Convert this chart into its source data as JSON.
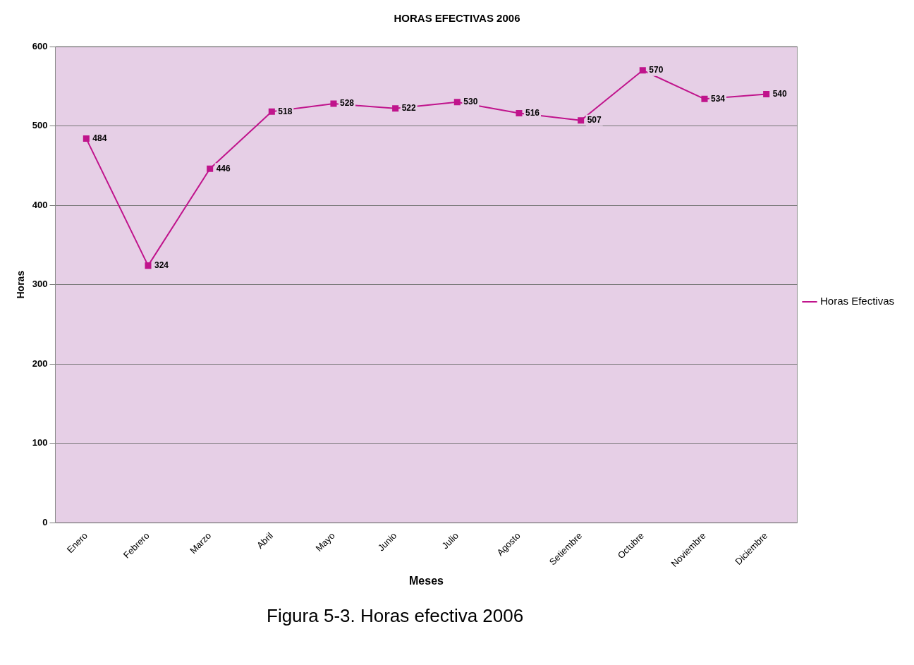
{
  "chart_data": {
    "type": "line",
    "title": "HORAS EFECTIVAS 2006",
    "xlabel": "Meses",
    "ylabel": "Horas",
    "categories": [
      "Enero",
      "Febrero",
      "Marzo",
      "Abril",
      "Mayo",
      "Junio",
      "Julio",
      "Agosto",
      "Setiembre",
      "Octubre",
      "Noviembre",
      "Diciembre"
    ],
    "series": [
      {
        "name": "Horas Efectivas",
        "color": "#c0148c",
        "values": [
          484,
          324,
          446,
          518,
          528,
          522,
          530,
          516,
          507,
          570,
          534,
          540
        ]
      }
    ],
    "ylim": [
      0,
      600
    ],
    "yticks": [
      0,
      100,
      200,
      300,
      400,
      500,
      600
    ],
    "grid": "y",
    "legend": "right",
    "marker": "square",
    "line_style": "solid",
    "data_labels": true,
    "annotations": [
      "Figura 5-3. Horas efectiva 2006"
    ]
  }
}
